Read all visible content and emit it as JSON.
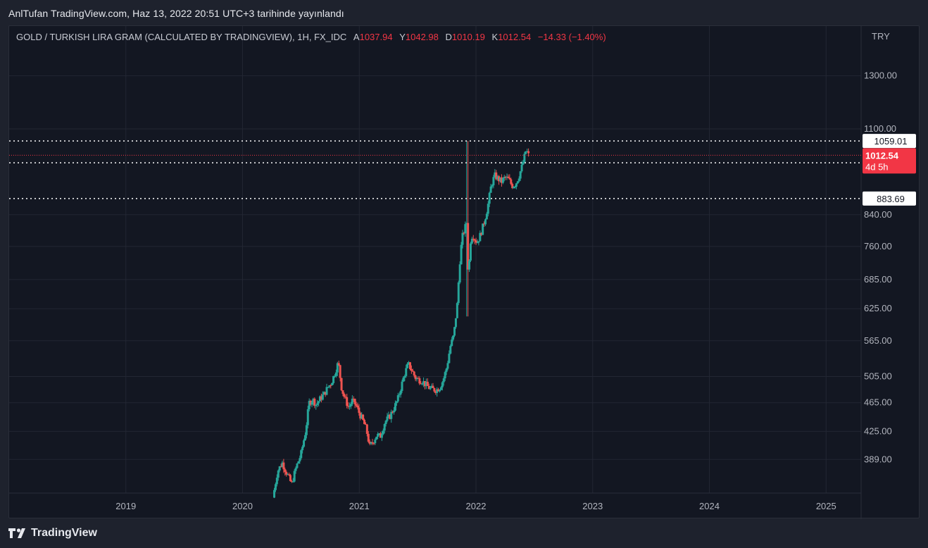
{
  "caption": "AnlTufan TradingView.com, Haz 13, 2022 20:51 UTC+3 tarihinde yayınlandı",
  "legend": {
    "symbol": "GOLD / TURKISH LIRA GRAM (CALCULATED BY TRADINGVIEW), 1H, FX_IDC",
    "open_key": "A",
    "open": "1037.94",
    "high_key": "Y",
    "high": "1042.98",
    "low_key": "D",
    "low": "1010.19",
    "close_key": "K",
    "close": "1012.54",
    "change": "−14.33 (−1.40%)"
  },
  "footer": {
    "brand": "TradingView",
    "logo_icon": "tradingview-logo-icon"
  },
  "colors": {
    "background": "#131722",
    "up": "#26a69a",
    "down": "#ef5350",
    "grid": "#232733",
    "axis_text": "#b2b5be",
    "price_tag": "#f23645"
  },
  "chart_data": {
    "type": "candlestick",
    "title": "",
    "currency": "TRY",
    "scale": "log",
    "y_ticks": [
      1300,
      1100,
      840,
      760,
      685,
      625,
      565,
      505,
      465,
      425,
      389
    ],
    "y_tick_labels": [
      "1300.00",
      "1100.00",
      "840.00",
      "760.00",
      "685.00",
      "625.00",
      "565.00",
      "505.00",
      "465.00",
      "425.00",
      "389.00"
    ],
    "x_ticks": [
      2019,
      2020,
      2021,
      2022,
      2023,
      2024,
      2025
    ],
    "x_tick_labels": [
      "2019",
      "2020",
      "2021",
      "2022",
      "2023",
      "2024",
      "2025"
    ],
    "x_range": [
      2018.0,
      2025.3
    ],
    "y_range": [
      350,
      1520
    ],
    "horizontal_levels": [
      {
        "value": 1059.01,
        "label": "1059.01",
        "style": "dotted"
      },
      {
        "value": 988.88,
        "label": "988.88",
        "style": "dotted"
      },
      {
        "value": 883.69,
        "label": "883.69",
        "style": "dotted"
      }
    ],
    "last_price": {
      "value": 1012.54,
      "label": "1012.54",
      "countdown": "4d 5h"
    },
    "price_path": [
      [
        2020.26,
        345
      ],
      [
        2020.3,
        375
      ],
      [
        2020.34,
        385
      ],
      [
        2020.38,
        372
      ],
      [
        2020.42,
        360
      ],
      [
        2020.46,
        380
      ],
      [
        2020.5,
        395
      ],
      [
        2020.54,
        425
      ],
      [
        2020.57,
        465
      ],
      [
        2020.6,
        470
      ],
      [
        2020.63,
        462
      ],
      [
        2020.67,
        472
      ],
      [
        2020.7,
        478
      ],
      [
        2020.73,
        488
      ],
      [
        2020.76,
        495
      ],
      [
        2020.79,
        510
      ],
      [
        2020.82,
        528
      ],
      [
        2020.85,
        485
      ],
      [
        2020.88,
        470
      ],
      [
        2020.91,
        458
      ],
      [
        2020.94,
        468
      ],
      [
        2020.97,
        462
      ],
      [
        2021.0,
        450
      ],
      [
        2021.03,
        440
      ],
      [
        2021.06,
        428
      ],
      [
        2021.09,
        405
      ],
      [
        2021.12,
        412
      ],
      [
        2021.15,
        420
      ],
      [
        2021.18,
        418
      ],
      [
        2021.22,
        438
      ],
      [
        2021.26,
        445
      ],
      [
        2021.3,
        458
      ],
      [
        2021.33,
        470
      ],
      [
        2021.36,
        490
      ],
      [
        2021.39,
        510
      ],
      [
        2021.42,
        525
      ],
      [
        2021.45,
        515
      ],
      [
        2021.48,
        503
      ],
      [
        2021.51,
        500
      ],
      [
        2021.54,
        498
      ],
      [
        2021.57,
        492
      ],
      [
        2021.6,
        487
      ],
      [
        2021.63,
        485
      ],
      [
        2021.66,
        484
      ],
      [
        2021.69,
        488
      ],
      [
        2021.72,
        500
      ],
      [
        2021.75,
        520
      ],
      [
        2021.78,
        555
      ],
      [
        2021.81,
        575
      ],
      [
        2021.84,
        635
      ],
      [
        2021.86,
        720
      ],
      [
        2021.88,
        780
      ],
      [
        2021.9,
        800
      ],
      [
        2021.92,
        820
      ],
      [
        2021.935,
        680
      ],
      [
        2021.95,
        770
      ],
      [
        2021.97,
        790
      ],
      [
        2021.99,
        778
      ],
      [
        2022.01,
        770
      ],
      [
        2022.04,
        790
      ],
      [
        2022.07,
        820
      ],
      [
        2022.1,
        860
      ],
      [
        2022.13,
        920
      ],
      [
        2022.16,
        950
      ],
      [
        2022.19,
        940
      ],
      [
        2022.22,
        932
      ],
      [
        2022.25,
        945
      ],
      [
        2022.28,
        938
      ],
      [
        2022.31,
        920
      ],
      [
        2022.34,
        925
      ],
      [
        2022.37,
        950
      ],
      [
        2022.4,
        985
      ],
      [
        2022.43,
        1030
      ],
      [
        2022.45,
        1012.54
      ]
    ]
  }
}
